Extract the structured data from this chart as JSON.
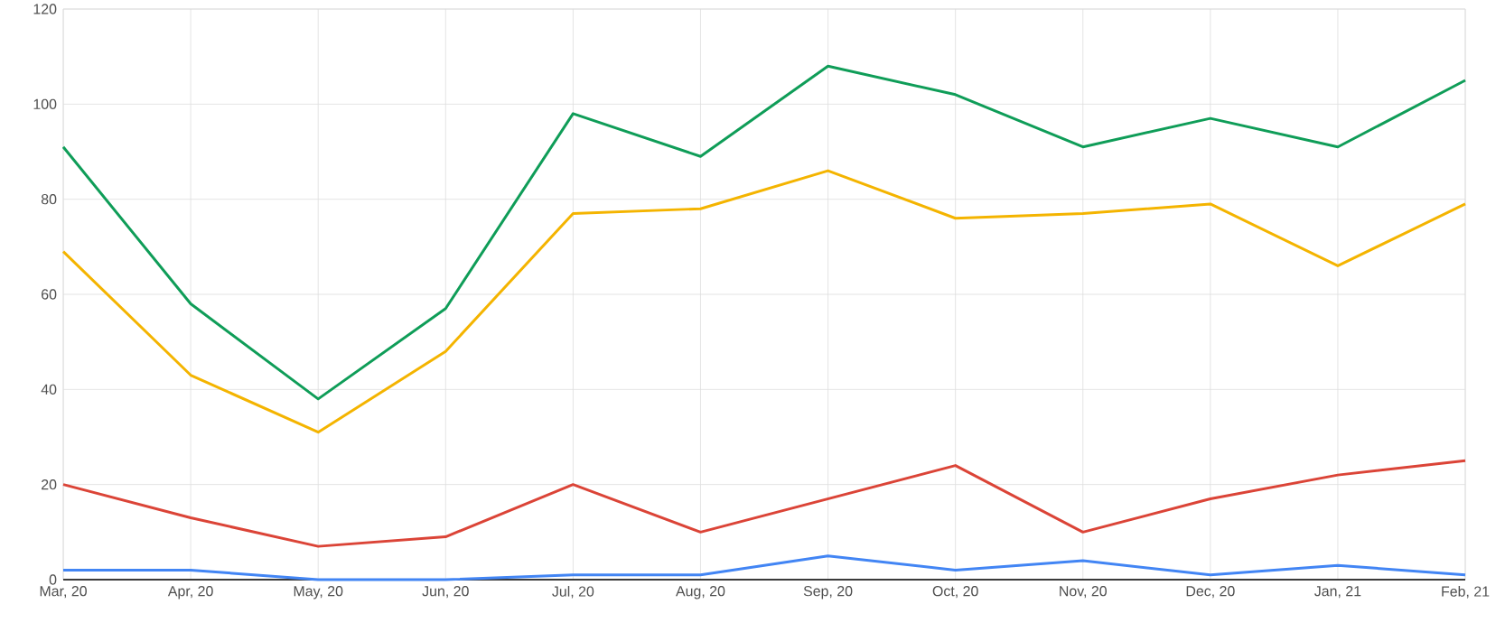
{
  "chart_data": {
    "type": "line",
    "categories": [
      "Mar, 20",
      "Apr, 20",
      "May, 20",
      "Jun, 20",
      "Jul, 20",
      "Aug, 20",
      "Sep, 20",
      "Oct, 20",
      "Nov, 20",
      "Dec, 20",
      "Jan, 21",
      "Feb, 21"
    ],
    "series": [
      {
        "color": "#0f9d58",
        "values": [
          91,
          58,
          38,
          57,
          98,
          89,
          108,
          102,
          91,
          97,
          91,
          105
        ]
      },
      {
        "color": "#f4b400",
        "values": [
          69,
          43,
          31,
          48,
          77,
          78,
          86,
          76,
          77,
          79,
          66,
          79
        ]
      },
      {
        "color": "#db4437",
        "values": [
          20,
          13,
          7,
          9,
          20,
          10,
          17,
          24,
          10,
          17,
          22,
          25
        ]
      },
      {
        "color": "#4285f4",
        "values": [
          2,
          2,
          0,
          0,
          1,
          1,
          5,
          2,
          4,
          1,
          3,
          1
        ]
      }
    ],
    "ylim": [
      0,
      120
    ],
    "yticks": [
      0,
      20,
      40,
      60,
      80,
      100,
      120
    ],
    "grid": true,
    "marker": "none",
    "line_style": "solid"
  }
}
